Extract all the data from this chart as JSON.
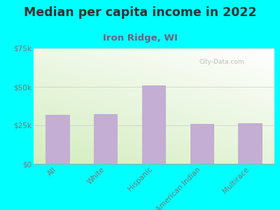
{
  "title": "Median per capita income in 2022",
  "subtitle": "Iron Ridge, WI",
  "categories": [
    "All",
    "White",
    "Hispanic",
    "American Indian",
    "Multirace"
  ],
  "values": [
    32000,
    32500,
    51000,
    26000,
    26500
  ],
  "bar_color": "#c4aed4",
  "background_outer": "#00ffff",
  "background_inner_top_left": "#d4ecc0",
  "background_inner_bottom_right": "#ffffff",
  "title_color": "#333333",
  "subtitle_color": "#7a5c7a",
  "tick_color": "#777777",
  "ylim": [
    0,
    75000
  ],
  "yticks": [
    0,
    25000,
    50000,
    75000
  ],
  "ytick_labels": [
    "$0",
    "$25k",
    "$50k",
    "$75k"
  ],
  "watermark": "City-Data.com",
  "title_fontsize": 12.5,
  "subtitle_fontsize": 9.5,
  "tick_fontsize": 7.5,
  "bar_width": 0.5
}
